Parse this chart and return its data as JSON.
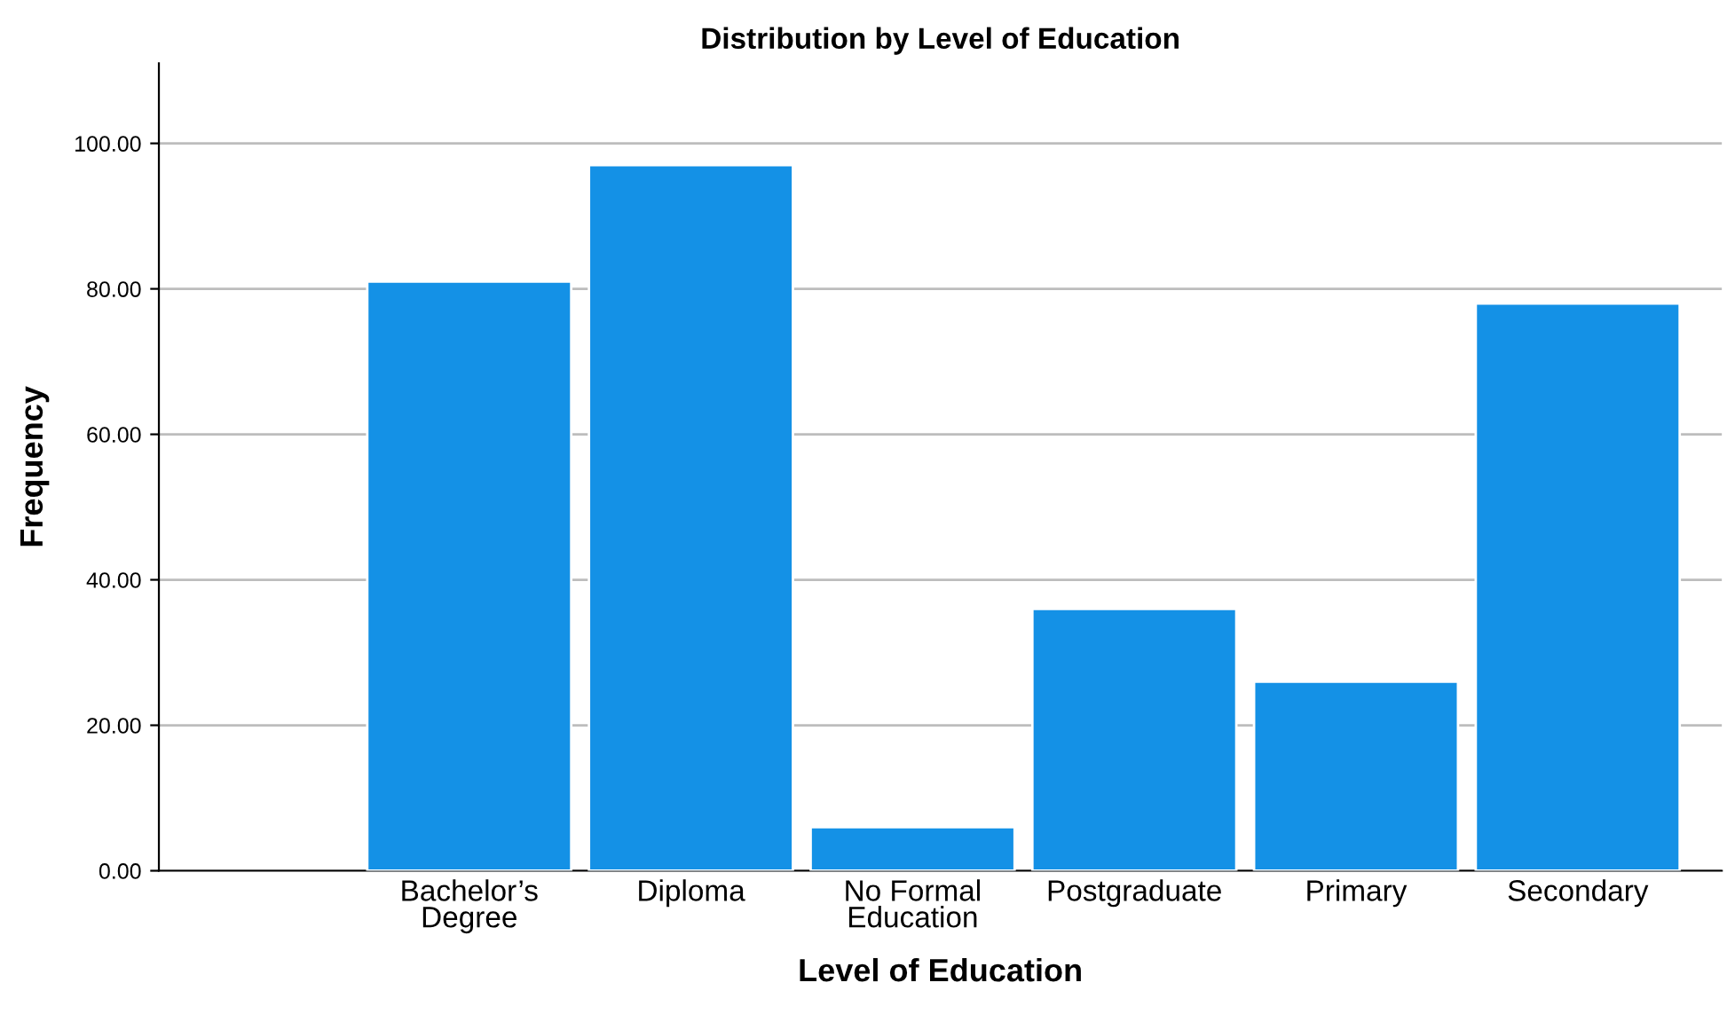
{
  "chart_data": {
    "type": "bar",
    "title": "Distribution by Level of Education",
    "xlabel": "Level of Education",
    "ylabel": "Frequency",
    "categories": [
      "Bachelor’s\nDegree",
      "Diploma",
      "No Formal\nEducation",
      "Postgraduate",
      "Primary",
      "Secondary"
    ],
    "values": [
      81,
      97,
      6,
      36,
      26,
      78
    ],
    "color": "#1491e6",
    "ylim": [
      0,
      111
    ],
    "yticks": [
      {
        "value": 0,
        "label": "0.00"
      },
      {
        "value": 20,
        "label": "20.00"
      },
      {
        "value": 40,
        "label": "40.00"
      },
      {
        "value": 60,
        "label": "60.00"
      },
      {
        "value": 80,
        "label": "80.00"
      },
      {
        "value": 100,
        "label": "100.00"
      }
    ],
    "grid": "y"
  }
}
